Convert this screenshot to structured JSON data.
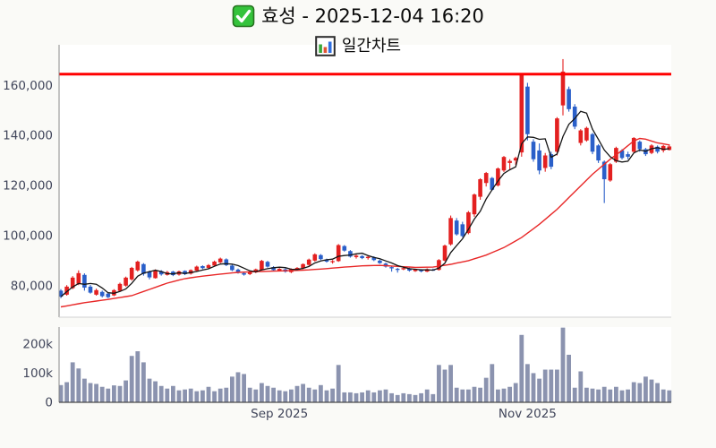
{
  "header": {
    "title": "효성 - 2025-12-04 16:20",
    "subtitle": "일간차트",
    "check_icon": "checkbox-icon",
    "subtitle_icon": "bar-chart-icon"
  },
  "colors": {
    "up": "#e32020",
    "down": "#2a5fc9",
    "ma_fast": "#151515",
    "ma_slow": "#e82727",
    "limit_line": "#ff0000",
    "volume_bar": "#8b93af",
    "tick_label": "#40455a",
    "axis_line": "#8a8a8a",
    "bottom_axis_line": "#4a4a4a",
    "plot_border": "#d2d2d2",
    "plot_bg": "#ffffff"
  },
  "chart_data": {
    "type": "candlestick+volume",
    "title": "효성 - 2025-12-04 16:20",
    "subtitle": "일간차트",
    "price_axis": {
      "ticks": [
        80000,
        100000,
        120000,
        140000,
        160000
      ],
      "tick_labels": [
        "80,000",
        "100,000",
        "120,000",
        "140,000",
        "160,000"
      ],
      "range": [
        67400,
        176200
      ]
    },
    "volume_axis": {
      "ticks": [
        0,
        100000,
        200000
      ],
      "tick_labels": [
        "0",
        "100k",
        "200k"
      ],
      "range": [
        0,
        258000
      ]
    },
    "x_axis": {
      "ticks": [
        {
          "index": 37,
          "label": "Sep 2025"
        },
        {
          "index": 79,
          "label": "Nov 2025"
        }
      ]
    },
    "limit_line": {
      "value": 164500
    },
    "ma_fast": {
      "kind": "sma",
      "window": 5
    },
    "ma_slow": {
      "kind": "points",
      "points": [
        [
          0,
          71500
        ],
        [
          4,
          73200
        ],
        [
          8,
          74500
        ],
        [
          12,
          76000
        ],
        [
          15,
          78500
        ],
        [
          18,
          81000
        ],
        [
          21,
          82800
        ],
        [
          24,
          83800
        ],
        [
          27,
          84600
        ],
        [
          30,
          85300
        ],
        [
          33,
          85600
        ],
        [
          36,
          85800
        ],
        [
          39,
          86000
        ],
        [
          42,
          86300
        ],
        [
          45,
          86800
        ],
        [
          48,
          87400
        ],
        [
          51,
          87900
        ],
        [
          54,
          88100
        ],
        [
          57,
          87700
        ],
        [
          60,
          87300
        ],
        [
          63,
          87400
        ],
        [
          66,
          88500
        ],
        [
          69,
          90000
        ],
        [
          72,
          92200
        ],
        [
          75,
          95200
        ],
        [
          78,
          99200
        ],
        [
          81,
          104500
        ],
        [
          84,
          110500
        ],
        [
          87,
          117500
        ],
        [
          90,
          124500
        ],
        [
          93,
          130500
        ],
        [
          95,
          134000
        ],
        [
          97,
          137800
        ],
        [
          98,
          138800
        ],
        [
          99,
          138500
        ],
        [
          101,
          137000
        ],
        [
          103,
          136200
        ]
      ]
    },
    "candles": [
      [
        78000,
        78600,
        75000,
        75600
      ],
      [
        76400,
        80200,
        76000,
        79600
      ],
      [
        79000,
        83800,
        78600,
        83200
      ],
      [
        80700,
        86100,
        80200,
        85000
      ],
      [
        84300,
        84900,
        78000,
        79200
      ],
      [
        79600,
        80300,
        76800,
        77200
      ],
      [
        76400,
        78800,
        76000,
        78200
      ],
      [
        77500,
        78000,
        75300,
        75800
      ],
      [
        76800,
        77200,
        75000,
        75400
      ],
      [
        76100,
        78600,
        75800,
        78200
      ],
      [
        77900,
        81200,
        77500,
        80700
      ],
      [
        80000,
        83600,
        79600,
        83200
      ],
      [
        82500,
        87500,
        82000,
        87100
      ],
      [
        86100,
        90000,
        85600,
        89600
      ],
      [
        88600,
        89000,
        84000,
        84700
      ],
      [
        85500,
        86000,
        82500,
        83300
      ],
      [
        83000,
        86500,
        82800,
        86000
      ],
      [
        85800,
        86200,
        84000,
        84500
      ],
      [
        84300,
        85900,
        84000,
        85400
      ],
      [
        85600,
        85900,
        83800,
        84200
      ],
      [
        84400,
        86000,
        84000,
        85700
      ],
      [
        85900,
        86100,
        84200,
        84600
      ],
      [
        84800,
        86500,
        84400,
        86200
      ],
      [
        86000,
        88000,
        85700,
        87600
      ],
      [
        87800,
        88100,
        86600,
        87000
      ],
      [
        87100,
        88600,
        86800,
        88200
      ],
      [
        88000,
        90000,
        87700,
        89600
      ],
      [
        89300,
        91200,
        89000,
        90800
      ],
      [
        90500,
        90900,
        87800,
        88200
      ],
      [
        88000,
        88400,
        85800,
        86200
      ],
      [
        86400,
        86800,
        84800,
        85200
      ],
      [
        85000,
        85400,
        84000,
        84400
      ],
      [
        84600,
        85900,
        84200,
        85500
      ],
      [
        85300,
        86800,
        85000,
        86500
      ],
      [
        86300,
        90300,
        86000,
        89900
      ],
      [
        89500,
        89900,
        87200,
        87600
      ],
      [
        87400,
        87800,
        85800,
        86200
      ],
      [
        86000,
        87000,
        85700,
        86700
      ],
      [
        86500,
        86900,
        85200,
        85600
      ],
      [
        85400,
        86900,
        85000,
        86600
      ],
      [
        86400,
        87400,
        86000,
        87100
      ],
      [
        87000,
        88900,
        86600,
        88600
      ],
      [
        88300,
        90800,
        88000,
        90400
      ],
      [
        90000,
        92900,
        89600,
        92500
      ],
      [
        92200,
        92600,
        90200,
        90600
      ],
      [
        90400,
        90800,
        89200,
        89600
      ],
      [
        89400,
        90200,
        88800,
        89800
      ],
      [
        89800,
        96600,
        89500,
        96200
      ],
      [
        95800,
        96200,
        93600,
        94000
      ],
      [
        93800,
        94200,
        91200,
        91600
      ],
      [
        91400,
        92400,
        90800,
        92000
      ],
      [
        91800,
        92200,
        90600,
        91000
      ],
      [
        91000,
        91900,
        90400,
        91500
      ],
      [
        91300,
        91700,
        89800,
        90200
      ],
      [
        90000,
        90400,
        88700,
        89000
      ],
      [
        88800,
        89200,
        87200,
        87600
      ],
      [
        87400,
        87800,
        85600,
        86900
      ],
      [
        86700,
        87100,
        85200,
        86400
      ],
      [
        86500,
        87300,
        86200,
        87000
      ],
      [
        86800,
        87200,
        85600,
        86000
      ],
      [
        85800,
        86700,
        85500,
        86400
      ],
      [
        86200,
        86600,
        85300,
        85700
      ],
      [
        85600,
        86900,
        85400,
        86600
      ],
      [
        86400,
        86800,
        85900,
        86200
      ],
      [
        86300,
        90600,
        86000,
        90200
      ],
      [
        90000,
        96400,
        89700,
        96000
      ],
      [
        96500,
        108000,
        96000,
        107000
      ],
      [
        106000,
        107000,
        100000,
        100500
      ],
      [
        104500,
        105500,
        99300,
        99800
      ],
      [
        101000,
        109800,
        100500,
        109300
      ],
      [
        108500,
        116800,
        107500,
        116400
      ],
      [
        115500,
        122900,
        114300,
        122500
      ],
      [
        121000,
        125400,
        119600,
        125000
      ],
      [
        123000,
        123400,
        117900,
        118300
      ],
      [
        120000,
        127200,
        119600,
        126800
      ],
      [
        126000,
        131800,
        125400,
        131400
      ],
      [
        129000,
        130500,
        126500,
        129800
      ],
      [
        130000,
        131500,
        128200,
        131000
      ],
      [
        133200,
        164500,
        131500,
        164300
      ],
      [
        159500,
        161000,
        138000,
        140500
      ],
      [
        137500,
        138500,
        129500,
        130500
      ],
      [
        134000,
        136800,
        124500,
        126000
      ],
      [
        127000,
        133000,
        125500,
        132000
      ],
      [
        132500,
        133500,
        126500,
        127500
      ],
      [
        133500,
        147300,
        132000,
        146800
      ],
      [
        152000,
        170500,
        148000,
        165500
      ],
      [
        158500,
        159500,
        149500,
        150500
      ],
      [
        151500,
        152500,
        142500,
        143500
      ],
      [
        137000,
        142500,
        136000,
        142000
      ],
      [
        138000,
        143500,
        137500,
        143000
      ],
      [
        140500,
        141000,
        132500,
        133500
      ],
      [
        136000,
        136500,
        129000,
        130000
      ],
      [
        129500,
        130000,
        113000,
        122500
      ],
      [
        122000,
        129000,
        121500,
        128500
      ],
      [
        129500,
        135500,
        129000,
        135000
      ],
      [
        134000,
        134500,
        130400,
        131000
      ],
      [
        132500,
        133500,
        130500,
        131500
      ],
      [
        133500,
        139300,
        133000,
        139000
      ],
      [
        137500,
        138000,
        133500,
        134500
      ],
      [
        134500,
        135000,
        131800,
        132500
      ],
      [
        133000,
        136500,
        132500,
        136000
      ],
      [
        135500,
        136000,
        132800,
        133500
      ],
      [
        134000,
        136200,
        133200,
        135800
      ],
      [
        134200,
        136500,
        134000,
        135600
      ]
    ],
    "volumes": [
      59000,
      69000,
      137000,
      116000,
      81000,
      66000,
      63000,
      53000,
      47000,
      58000,
      56000,
      75000,
      159000,
      175000,
      137000,
      81000,
      72000,
      56000,
      47000,
      56000,
      41000,
      44000,
      47000,
      38000,
      41000,
      53000,
      38000,
      47000,
      50000,
      88000,
      103000,
      97000,
      50000,
      44000,
      66000,
      56000,
      50000,
      41000,
      38000,
      44000,
      56000,
      63000,
      50000,
      44000,
      59000,
      41000,
      47000,
      128000,
      34000,
      34000,
      31000,
      34000,
      41000,
      34000,
      41000,
      44000,
      31000,
      25000,
      31000,
      28000,
      25000,
      31000,
      44000,
      28000,
      128000,
      112000,
      128000,
      50000,
      44000,
      44000,
      53000,
      50000,
      84000,
      131000,
      44000,
      47000,
      53000,
      66000,
      231000,
      131000,
      100000,
      81000,
      112000,
      112000,
      112000,
      256000,
      163000,
      50000,
      106000,
      50000,
      47000,
      44000,
      53000,
      44000,
      53000,
      41000,
      44000,
      69000,
      66000,
      88000,
      78000,
      66000,
      44000,
      41000
    ]
  }
}
